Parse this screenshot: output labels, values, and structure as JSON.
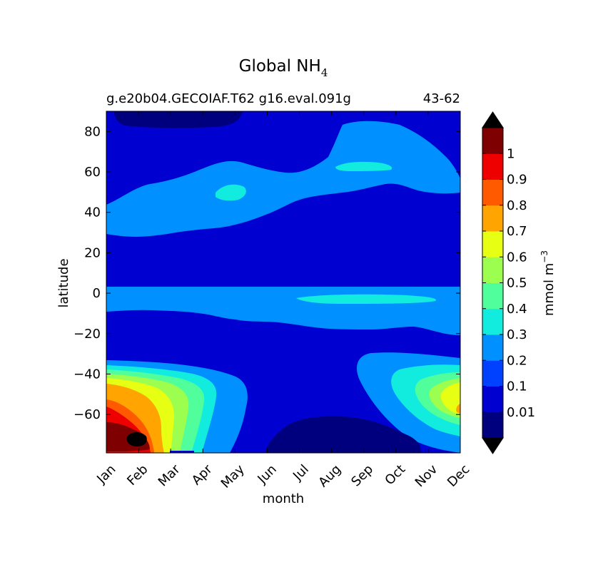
{
  "chart_data": {
    "type": "heatmap",
    "title_main": "Global NH",
    "title_sub": "4",
    "case_name": "g.e20b04.GECOIAF.T62 g16.eval.091g",
    "year_range": "43-62",
    "xlabel": "month",
    "ylabel": "latitude",
    "x_ticks": [
      "Jan",
      "Feb",
      "Mar",
      "Apr",
      "May",
      "Jun",
      "Jul",
      "Aug",
      "Sep",
      "Oct",
      "Nov",
      "Dec"
    ],
    "y_ticks": [
      80,
      60,
      40,
      20,
      0,
      -20,
      -40,
      -60
    ],
    "y_tick_labels": [
      "80",
      "60",
      "40",
      "20",
      "0",
      "−20",
      "−40",
      "−60"
    ],
    "ylim": [
      -79,
      90
    ],
    "colorbar": {
      "label_main": "mmol m",
      "label_sup": "−3",
      "levels": [
        0,
        0.01,
        0.1,
        0.2,
        0.3,
        0.4,
        0.5,
        0.6,
        0.7,
        0.8,
        0.9,
        1,
        1.1
      ],
      "tick_labels": [
        "0.01",
        "0.1",
        "0.2",
        "0.3",
        "0.4",
        "0.5",
        "0.6",
        "0.7",
        "0.8",
        "0.9",
        "1"
      ],
      "tick_values": [
        0.01,
        0.1,
        0.2,
        0.3,
        0.4,
        0.5,
        0.6,
        0.7,
        0.8,
        0.9,
        1
      ],
      "colors": [
        "#00007f",
        "#0000d0",
        "#0040ff",
        "#0090ff",
        "#12ecdf",
        "#50ff9c",
        "#9cff50",
        "#e6ff12",
        "#ffa400",
        "#ff5a00",
        "#ee0000",
        "#7f0000"
      ],
      "under_color": "#000000",
      "over_color": "#000000"
    }
  }
}
